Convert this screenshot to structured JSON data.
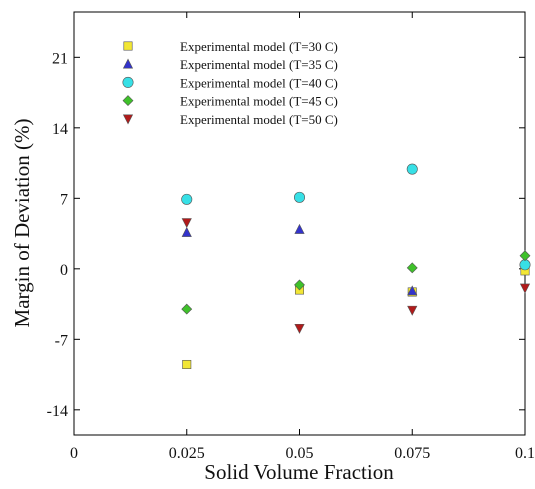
{
  "chart_data": {
    "type": "scatter",
    "title": "",
    "xlabel": "Solid Volume Fraction",
    "ylabel": "Margin of Deviation (%)",
    "xlim": [
      0,
      0.1
    ],
    "ylim": [
      -16.5,
      25.5
    ],
    "x_ticks": [
      0,
      0.025,
      0.05,
      0.075,
      0.1
    ],
    "x_tick_labels": [
      "0",
      "0.025",
      "0.05",
      "0.075",
      "0.1"
    ],
    "y_ticks": [
      -14,
      -7,
      0,
      7,
      14,
      21
    ],
    "y_tick_labels": [
      "-14",
      "-7",
      "0",
      "7",
      "14",
      "21"
    ],
    "grid": false,
    "legend_position": "top-left",
    "series": [
      {
        "name": "Experimental model (T=30 C)",
        "marker": "square",
        "color": "#f2e635",
        "x": [
          0.025,
          0.05,
          0.075,
          0.1
        ],
        "y": [
          -9.5,
          -2.1,
          -2.3,
          -0.2
        ]
      },
      {
        "name": "Experimental model (T=35 C)",
        "marker": "triangle-up",
        "color": "#3333cc",
        "x": [
          0.025,
          0.05,
          0.075
        ],
        "y": [
          3.6,
          3.9,
          -2.2
        ]
      },
      {
        "name": "Experimental model (T=40 C)",
        "marker": "circle",
        "color": "#37e0e6",
        "x": [
          0.025,
          0.05,
          0.075,
          0.1
        ],
        "y": [
          6.9,
          7.1,
          9.9,
          0.4
        ]
      },
      {
        "name": "Experimental model (T=45 C)",
        "marker": "diamond",
        "color": "#3fc12a",
        "x": [
          0.025,
          0.05,
          0.075,
          0.1
        ],
        "y": [
          -4.0,
          -1.6,
          0.1,
          1.3
        ]
      },
      {
        "name": "Experimental model (T=50 C)",
        "marker": "triangle-down",
        "color": "#b11a1a",
        "x": [
          0.025,
          0.05,
          0.075,
          0.1
        ],
        "y": [
          4.6,
          -5.9,
          -4.1,
          -1.9
        ]
      }
    ]
  }
}
